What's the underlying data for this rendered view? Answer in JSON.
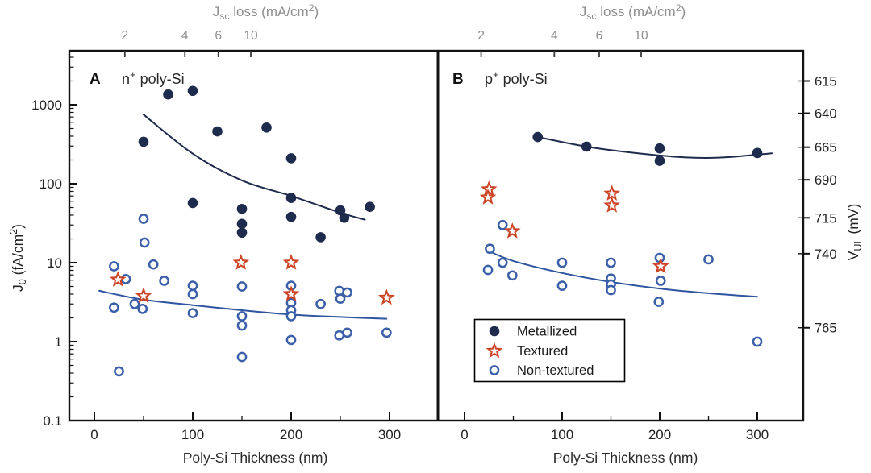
{
  "chart_data": {
    "type": "scatter",
    "x_label": "Poly-Si Thickness (nm)",
    "top_axis_title_tokens": [
      {
        "t": "J"
      },
      {
        "t": "sc",
        "style": "sub"
      },
      {
        "t": " loss (mA/cm"
      },
      {
        "t": "2",
        "style": "sup"
      },
      {
        "t": ")"
      }
    ],
    "y_left_label_tokens": [
      {
        "t": "J"
      },
      {
        "t": "0",
        "style": "sub"
      },
      {
        "t": " (fA/cm"
      },
      {
        "t": "2",
        "style": "sup"
      },
      {
        "t": ")"
      }
    ],
    "y_right_label_tokens": [
      {
        "t": "V"
      },
      {
        "t": "UL",
        "style": "sub"
      },
      {
        "t": " (mV)"
      }
    ],
    "x_range": [
      0,
      300
    ],
    "y_range": [
      0.1,
      4600
    ],
    "x_ticks": [
      {
        "label": "0",
        "nm": 0
      },
      {
        "label": "100",
        "nm": 100
      },
      {
        "label": "200",
        "nm": 200
      },
      {
        "label": "300",
        "nm": 300
      }
    ],
    "x_minor_nm": [
      50,
      150,
      250
    ],
    "y_left_ticks": [
      {
        "label": "1000",
        "j0": 1000
      },
      {
        "label": "100",
        "j0": 100
      },
      {
        "label": "10",
        "j0": 10
      },
      {
        "label": "1",
        "j0": 1
      },
      {
        "label": "0.1",
        "j0": 0.1
      }
    ],
    "y_right_ticks": [
      {
        "label": "615",
        "j0": 2000
      },
      {
        "label": "640",
        "j0": 780
      },
      {
        "label": "665",
        "j0": 290
      },
      {
        "label": "690",
        "j0": 112
      },
      {
        "label": "715",
        "j0": 37
      },
      {
        "label": "740",
        "j0": 13
      },
      {
        "label": "765",
        "j0": 1.5
      }
    ],
    "legend": {
      "items": [
        {
          "series": "metallized",
          "label": "Metallized"
        },
        {
          "series": "textured",
          "label": "Textured"
        },
        {
          "series": "non_textured",
          "label": "Non-textured"
        }
      ]
    },
    "colors": {
      "metallized": "#1e2b4d",
      "textured": "#cd4527",
      "non_textured": "#3b5fa9",
      "dark_line": "#1e2b4d",
      "blue_line": "#2f54a0",
      "top_axis_text": "#8d8d8d",
      "frame": "#121212",
      "text": "#222222"
    },
    "panels": [
      {
        "id": "A",
        "badge": "A",
        "subtitle_tokens": [
          {
            "t": "n"
          },
          {
            "t": "+",
            "style": "sup"
          },
          {
            "t": " poly-Si"
          }
        ],
        "top_ticks": [
          {
            "label": "2",
            "nm": 31
          },
          {
            "label": "4",
            "nm": 92
          },
          {
            "label": "6",
            "nm": 126
          },
          {
            "label": "10",
            "nm": 159
          }
        ],
        "series": {
          "metallized": [
            [
              75,
              1350
            ],
            [
              100,
              1500
            ],
            [
              50,
              340
            ],
            [
              125,
              460
            ],
            [
              175,
              515
            ],
            [
              200,
              210
            ],
            [
              100,
              57
            ],
            [
              200,
              66
            ],
            [
              200,
              38
            ],
            [
              150,
              48
            ],
            [
              150,
              31
            ],
            [
              150,
              24
            ],
            [
              230,
              21
            ],
            [
              250,
              46
            ],
            [
              254,
              37
            ],
            [
              280,
              51
            ]
          ],
          "textured": [
            [
              24,
              6.1
            ],
            [
              50,
              3.8
            ],
            [
              149,
              10
            ],
            [
              200,
              10
            ],
            [
              200,
              4.0
            ],
            [
              297,
              3.6
            ]
          ],
          "non_textured": [
            [
              50,
              36
            ],
            [
              51,
              18
            ],
            [
              20,
              9
            ],
            [
              60,
              9.5
            ],
            [
              32,
              6.2
            ],
            [
              71,
              5.9
            ],
            [
              100,
              5.1
            ],
            [
              100,
              4.0
            ],
            [
              100,
              2.3
            ],
            [
              41,
              3.0
            ],
            [
              20,
              2.7
            ],
            [
              49,
              2.6
            ],
            [
              150,
              5.0
            ],
            [
              150,
              2.1
            ],
            [
              150,
              1.6
            ],
            [
              150,
              0.64
            ],
            [
              200,
              5.1
            ],
            [
              200,
              3.1
            ],
            [
              200,
              2.5
            ],
            [
              200,
              2.1
            ],
            [
              200,
              1.05
            ],
            [
              230,
              3.0
            ],
            [
              249,
              4.4
            ],
            [
              257,
              4.2
            ],
            [
              250,
              3.5
            ],
            [
              249,
              1.2
            ],
            [
              257,
              1.3
            ],
            [
              297,
              1.3
            ],
            [
              25,
              0.42
            ]
          ]
        },
        "trends": {
          "dark": [
            [
              50,
              750
            ],
            [
              100,
              240
            ],
            [
              150,
              110
            ],
            [
              200,
              70
            ],
            [
              250,
              43
            ],
            [
              275,
              35
            ]
          ],
          "blue": [
            [
              5,
              4.4
            ],
            [
              50,
              3.4
            ],
            [
              100,
              2.9
            ],
            [
              150,
              2.5
            ],
            [
              200,
              2.2
            ],
            [
              250,
              2.05
            ],
            [
              297,
              1.95
            ]
          ]
        }
      },
      {
        "id": "B",
        "badge": "B",
        "subtitle_tokens": [
          {
            "t": "p"
          },
          {
            "t": "+",
            "style": "sup"
          },
          {
            "t": " poly-Si"
          }
        ],
        "top_ticks": [
          {
            "label": "2",
            "nm": 17
          },
          {
            "label": "4",
            "nm": 92
          },
          {
            "label": "6",
            "nm": 138
          },
          {
            "label": "10",
            "nm": 181
          }
        ],
        "series": {
          "metallized": [
            [
              75,
              390
            ],
            [
              125,
              295
            ],
            [
              200,
              280
            ],
            [
              200,
              195
            ],
            [
              300,
              245
            ]
          ],
          "textured": [
            [
              25,
              85
            ],
            [
              24,
              67
            ],
            [
              49,
              25
            ],
            [
              151,
              75
            ],
            [
              151,
              53
            ],
            [
              201,
              9.0
            ]
          ],
          "non_textured": [
            [
              39,
              30
            ],
            [
              26,
              15
            ],
            [
              24,
              8.1
            ],
            [
              39,
              10
            ],
            [
              49,
              6.9
            ],
            [
              100,
              10
            ],
            [
              100,
              5.1
            ],
            [
              150,
              10
            ],
            [
              150,
              6.3
            ],
            [
              150,
              5.3
            ],
            [
              150,
              4.5
            ],
            [
              200,
              11.5
            ],
            [
              201,
              5.9
            ],
            [
              199,
              3.2
            ],
            [
              250,
              11
            ],
            [
              300,
              1.0
            ]
          ]
        },
        "trends": {
          "dark": [
            [
              75,
              390
            ],
            [
              125,
              295
            ],
            [
              175,
              245
            ],
            [
              225,
              216
            ],
            [
              265,
              215
            ],
            [
              315,
              243
            ]
          ],
          "blue": [
            [
              25,
              14
            ],
            [
              50,
              10.5
            ],
            [
              100,
              7.4
            ],
            [
              150,
              5.7
            ],
            [
              200,
              4.7
            ],
            [
              250,
              4.1
            ],
            [
              300,
              3.7
            ]
          ]
        }
      }
    ]
  }
}
